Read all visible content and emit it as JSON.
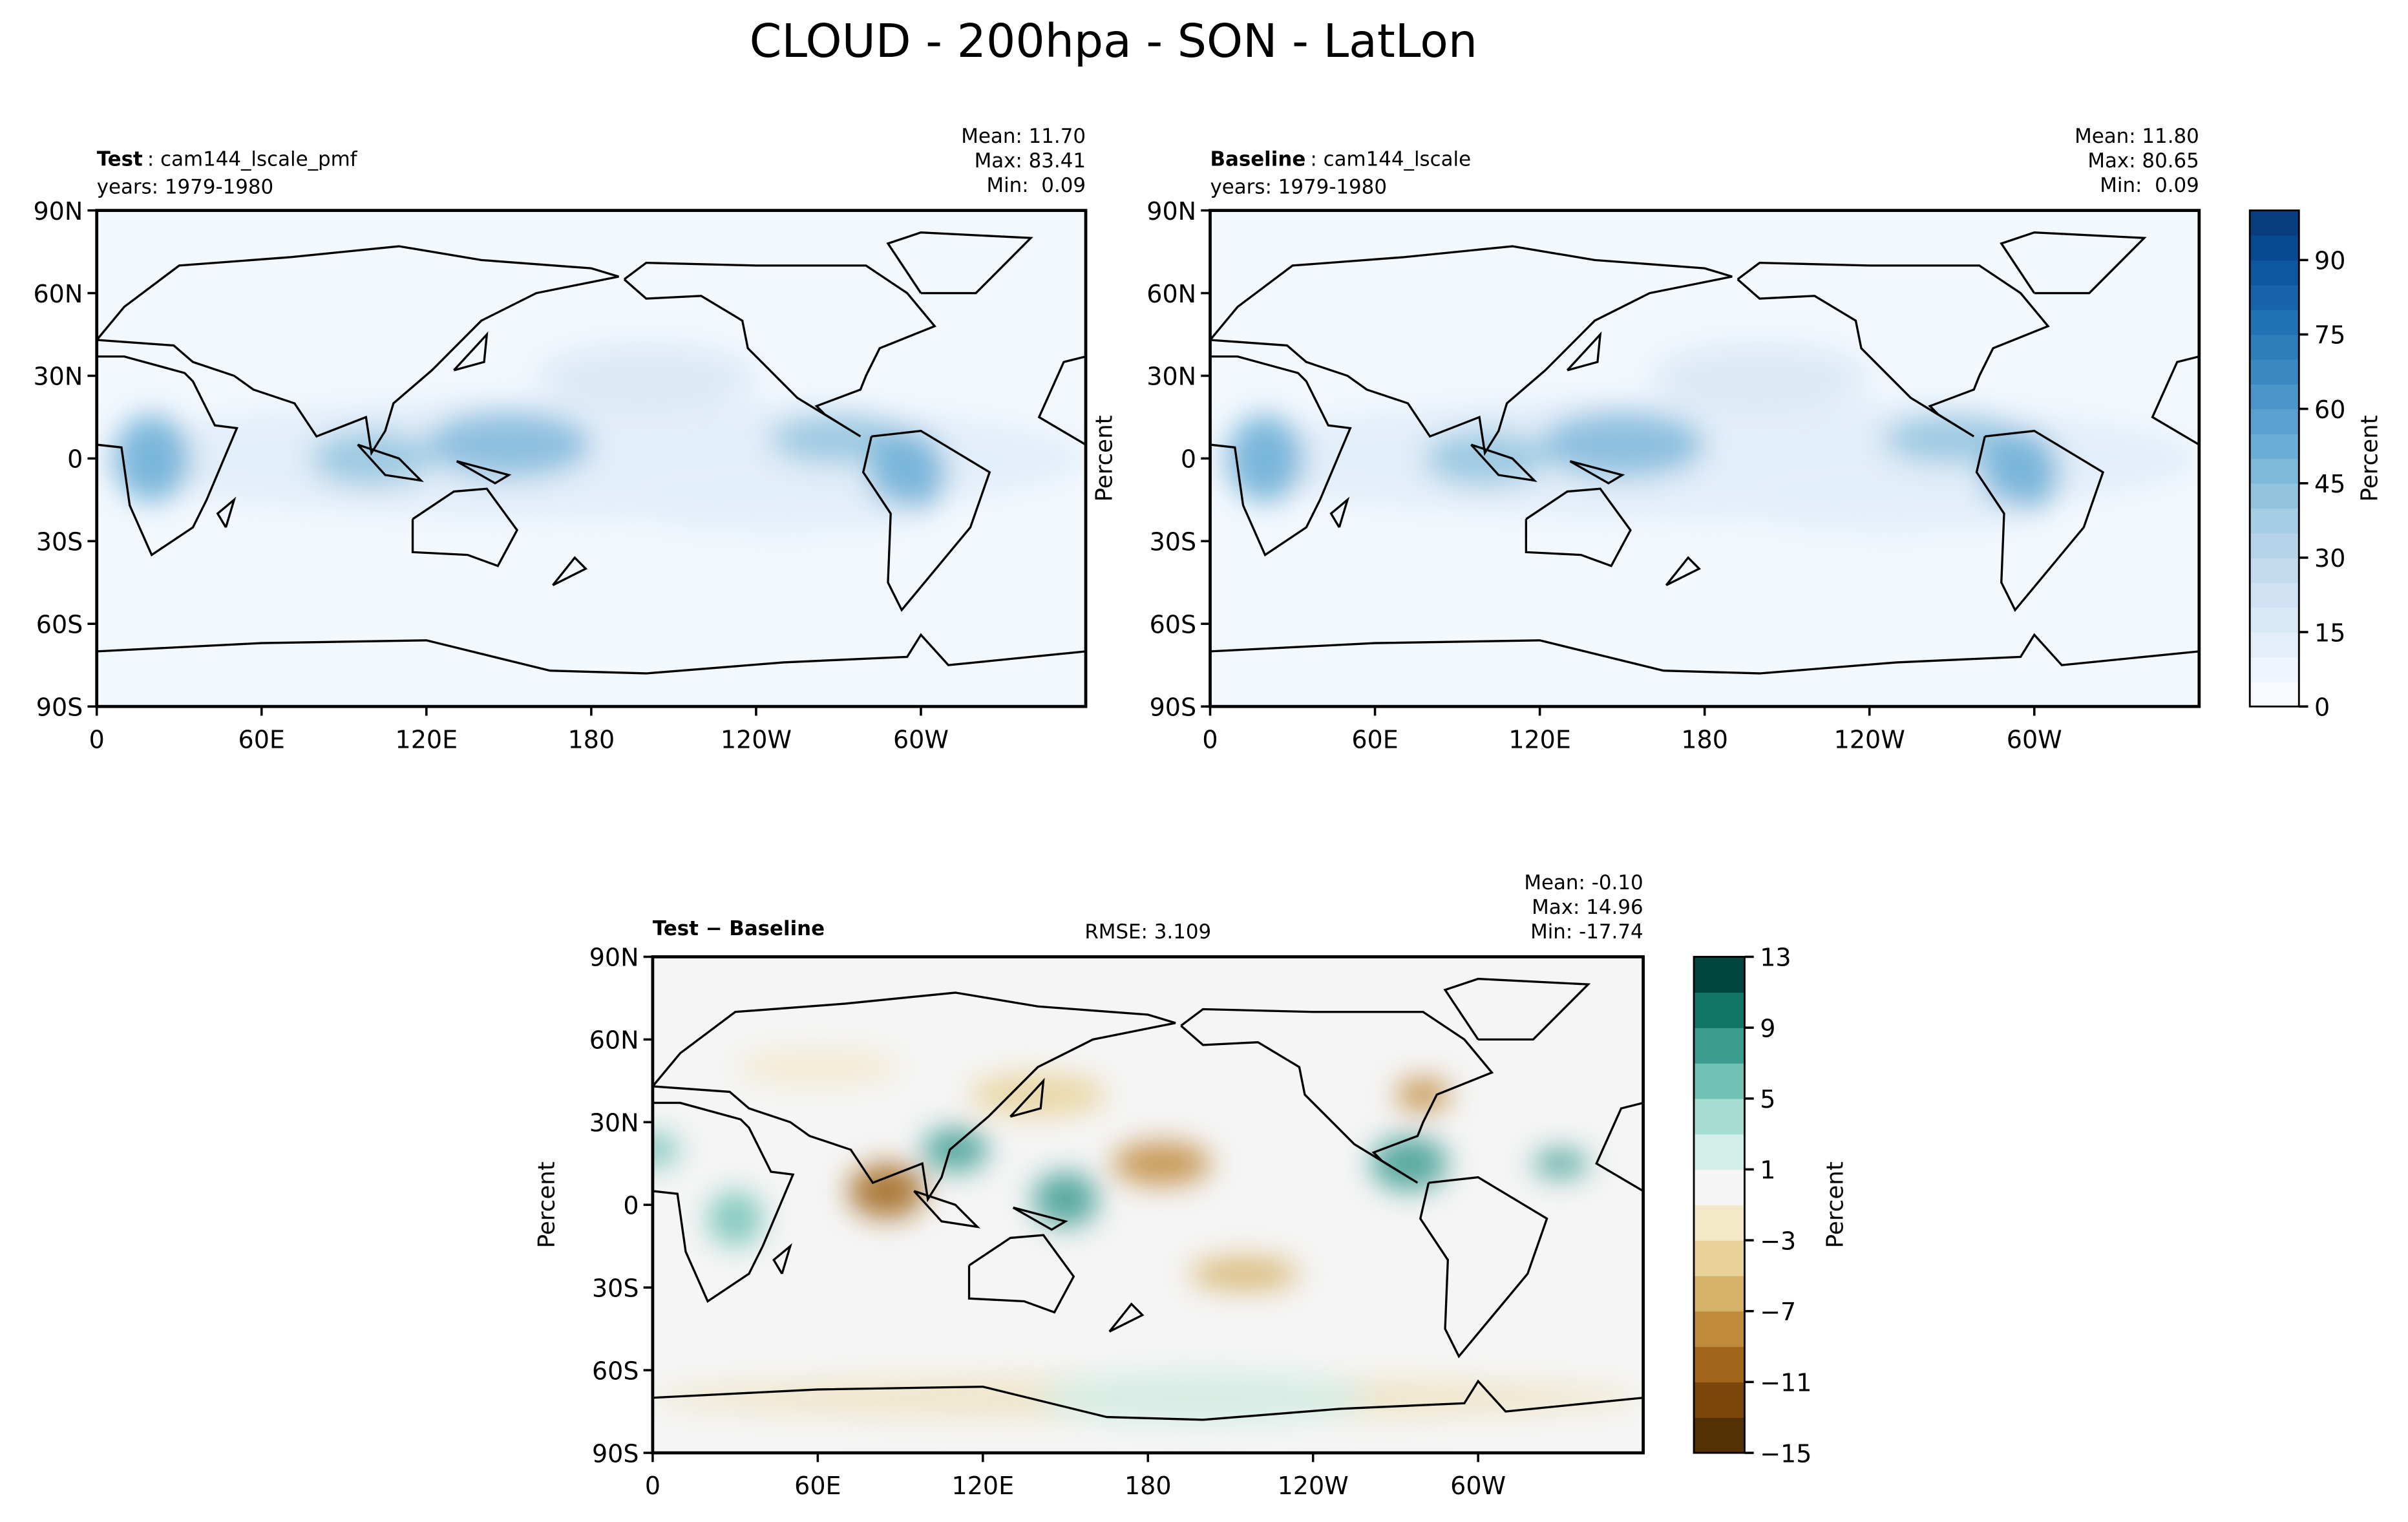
{
  "chart_data": {
    "type": "map",
    "title": "CLOUD - 200hpa - SON - LatLon",
    "lon_axis": {
      "lim": [
        0,
        360
      ],
      "ticks": [
        0,
        {
          "value": 60,
          "label": "60E"
        },
        {
          "value": 120,
          "label": "120E"
        },
        180,
        {
          "value": 240,
          "label": "120W"
        },
        {
          "value": 300,
          "label": "60W"
        }
      ]
    },
    "lat_axis": {
      "lim": [
        -90,
        90
      ],
      "ticks": [
        {
          "value": 90,
          "label": "90N"
        },
        {
          "value": 60,
          "label": "60N"
        },
        {
          "value": 30,
          "label": "30N"
        },
        0,
        {
          "value": -30,
          "label": "30S"
        },
        {
          "value": -60,
          "label": "60S"
        },
        {
          "value": -90,
          "label": "90S"
        }
      ]
    },
    "panels": [
      {
        "label_bold": "Test",
        "label": ": cam144_lscale_pmf",
        "years": "years: 1979-1980",
        "stats": [
          "Mean: 11.70",
          "Max: 83.41",
          "Min:  0.09"
        ]
      },
      {
        "label_bold": "Baseline",
        "label": ": cam144_lscale",
        "years": "years: 1979-1980",
        "stats": [
          "Mean: 11.80",
          "Max: 80.65",
          "Min:  0.09"
        ],
        "ylabel": "Percent"
      },
      {
        "label_bold": "Test − Baseline",
        "rmse": "RMSE: 3.109",
        "stats": [
          "Mean: -0.10",
          "Max: 14.96",
          "Min: -17.74"
        ],
        "ylabel": "Percent"
      }
    ],
    "colorbars": [
      {
        "label": "Percent",
        "lim": [
          0,
          100
        ],
        "ticks": [
          0,
          15,
          30,
          45,
          60,
          75,
          90
        ],
        "colors": [
          "#f7fbff",
          "#eef5fc",
          "#e3eef9",
          "#d9e8f5",
          "#cfe1f2",
          "#c4daee",
          "#b5d4e9",
          "#a5cde3",
          "#93c4de",
          "#7fb9da",
          "#6aaed6",
          "#59a1cf",
          "#4a95c9",
          "#3b88c3",
          "#2e7ebc",
          "#2171b5",
          "#1764ab",
          "#0d57a1",
          "#084a91",
          "#083d7f"
        ]
      },
      {
        "label": "Percent",
        "lim": [
          -15,
          13
        ],
        "ticks": [
          {
            "value": -15,
            "label": "−15"
          },
          {
            "value": -11,
            "label": "−11"
          },
          {
            "value": -7,
            "label": "−7"
          },
          {
            "value": -3,
            "label": "−3"
          },
          1,
          5,
          9,
          13
        ],
        "colors": [
          "#543005",
          "#7a4609",
          "#a0651b",
          "#bf8a3c",
          "#d6b268",
          "#e8d29a",
          "#f3e8c8",
          "#f5f5f5",
          "#d2eee9",
          "#a8ddd3",
          "#72c2b5",
          "#3d9c90",
          "#137568",
          "#01463e"
        ]
      }
    ]
  }
}
